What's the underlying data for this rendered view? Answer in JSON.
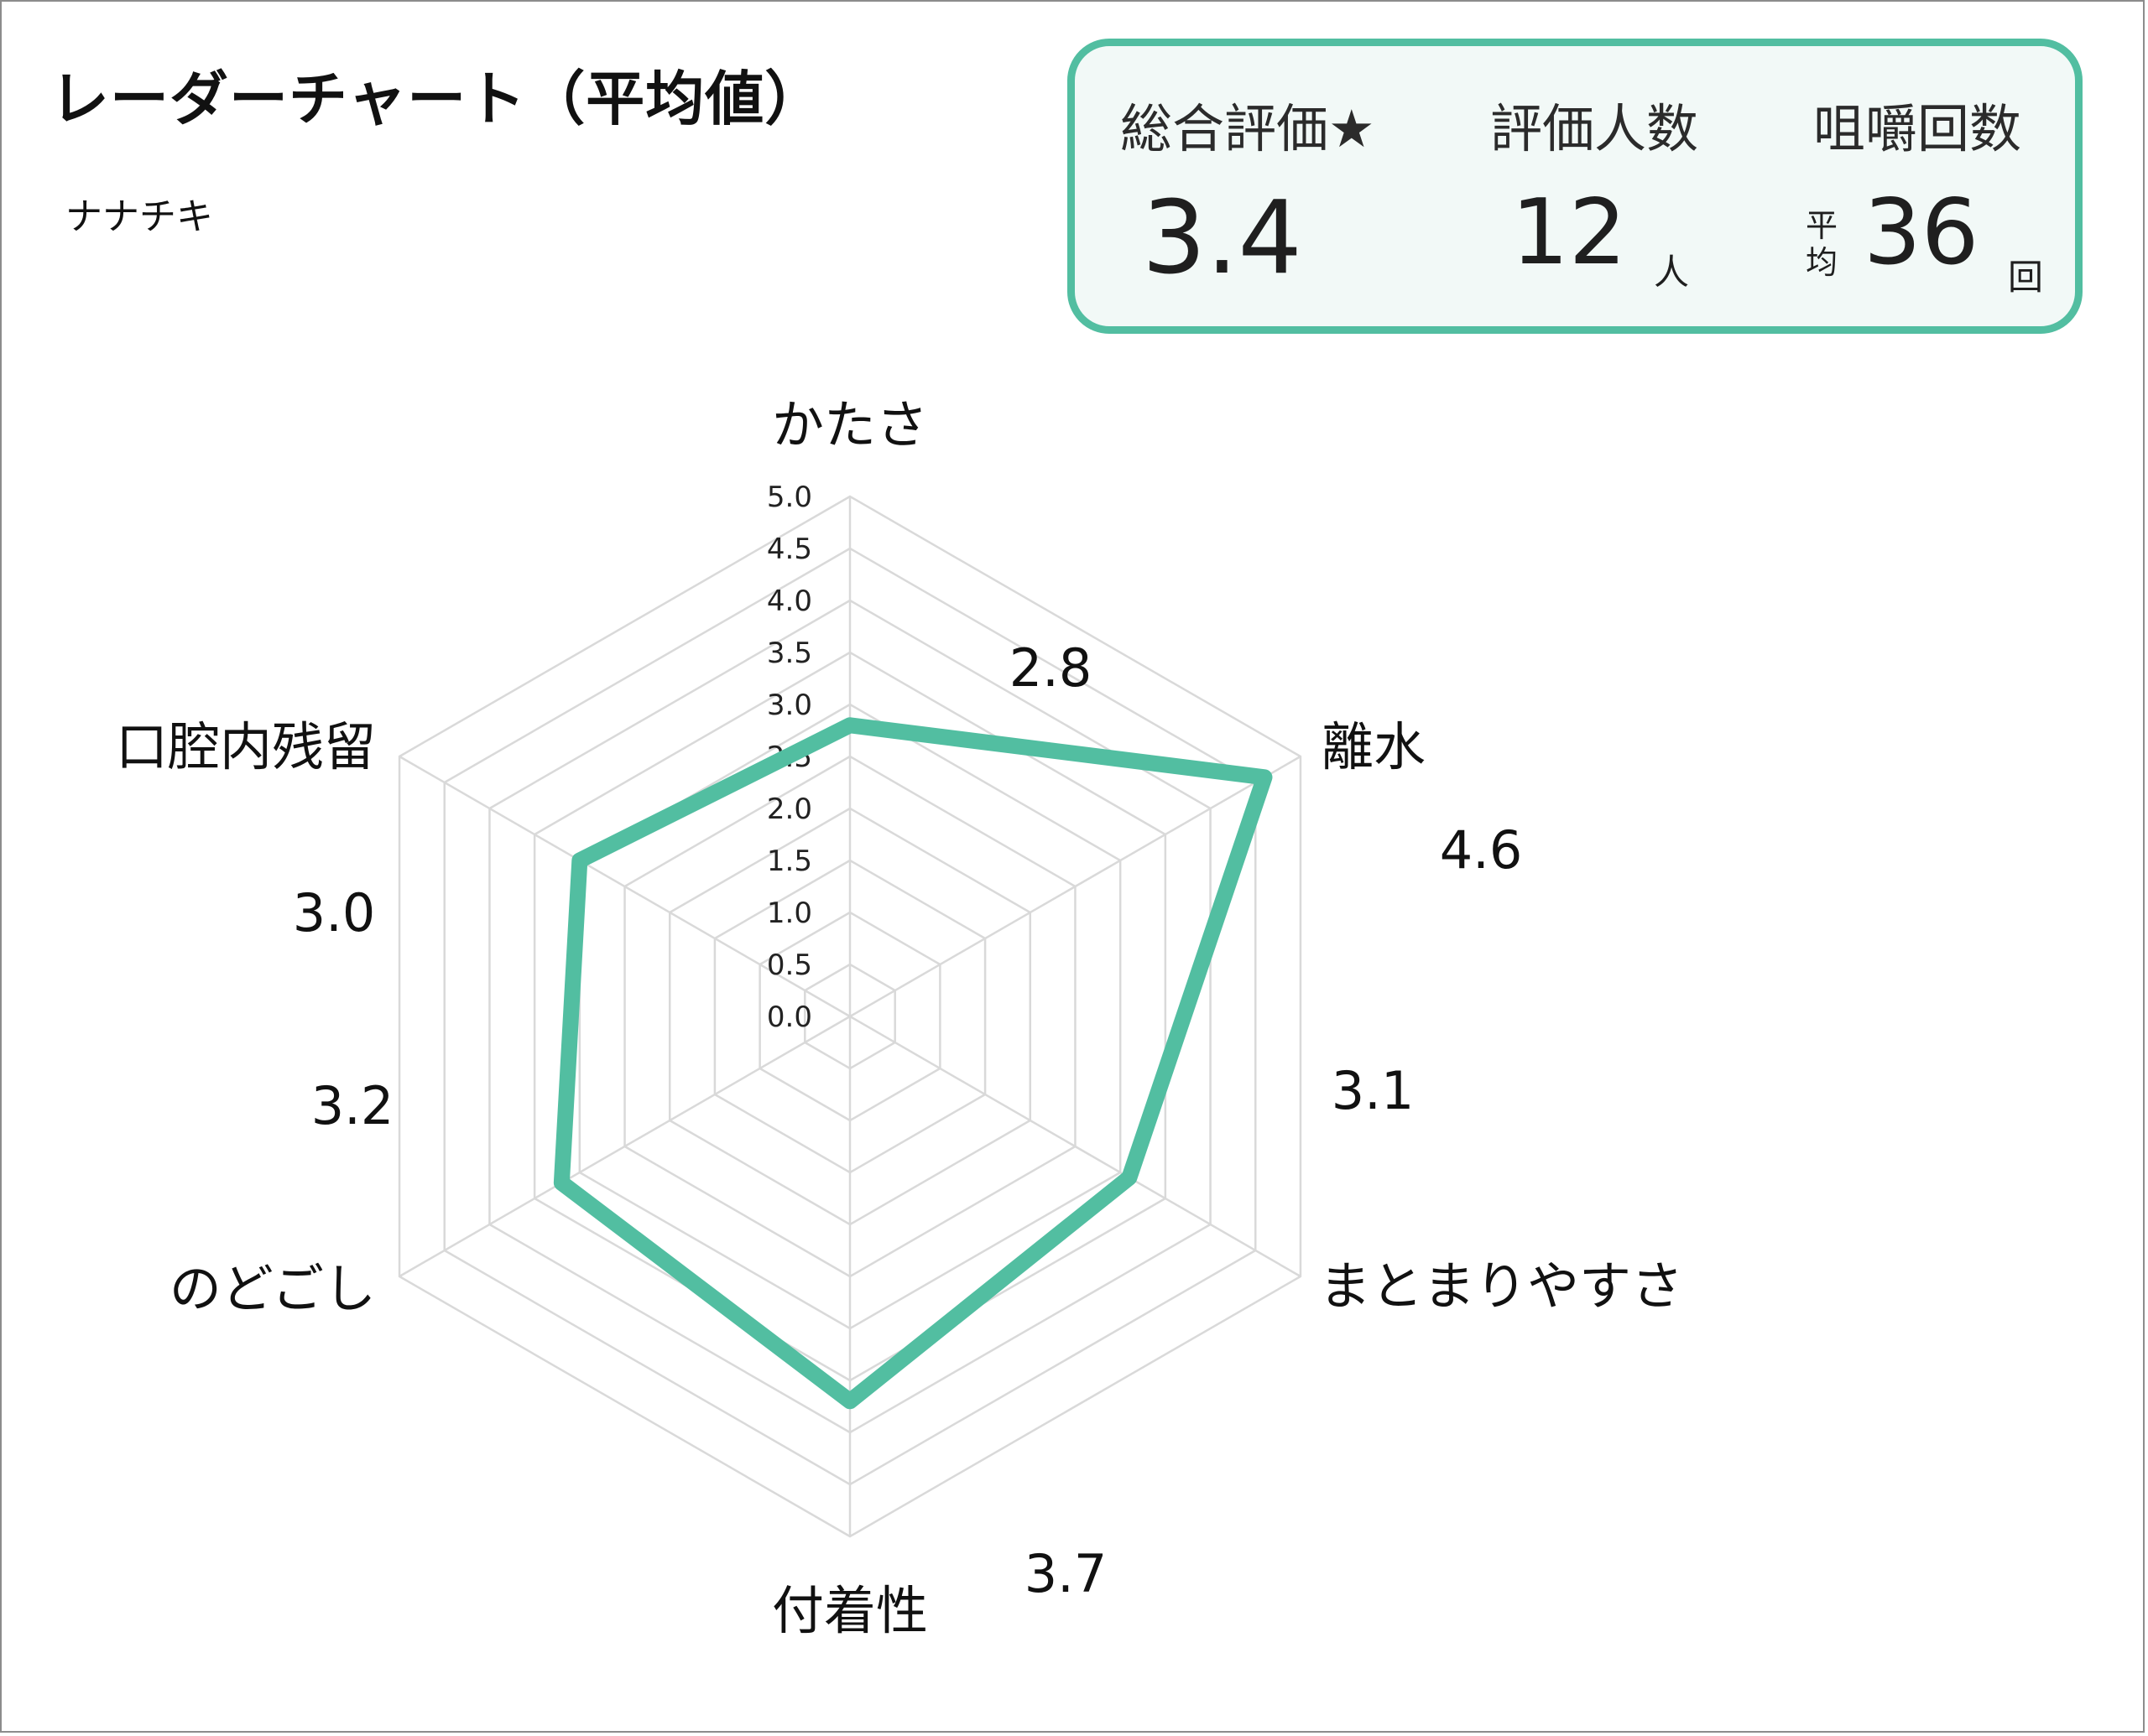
{
  "title": "レーダーチャート（平均値）",
  "subtitle": "ナナチキ",
  "summary": {
    "overall_label": "総合評価★",
    "overall_value": "3.4",
    "raters_label": "評価人数",
    "raters_value": "12",
    "raters_unit": "人",
    "chews_label": "咀嚼回数",
    "chews_prefix": "平均",
    "chews_value": "36",
    "chews_unit": "回"
  },
  "colors": {
    "accent": "#52bea1",
    "grid": "#d9d9d9",
    "panel_bg": "#f2f9f7"
  },
  "chart_data": {
    "type": "radar",
    "title": "レーダーチャート（平均値）",
    "axes": [
      "かたさ",
      "離水",
      "まとまりやすさ",
      "付着性",
      "のどごし",
      "口腔内残留"
    ],
    "values": [
      2.8,
      4.6,
      3.1,
      3.7,
      3.2,
      3.0
    ],
    "value_labels": [
      "2.8",
      "4.6",
      "3.1",
      "3.7",
      "3.2",
      "3.0"
    ],
    "range": [
      0,
      5
    ],
    "ticks": [
      "0.0",
      "0.5",
      "1.0",
      "1.5",
      "2.0",
      "2.5",
      "3.0",
      "3.5",
      "4.0",
      "4.5",
      "5.0"
    ],
    "grid": true,
    "legend": false
  }
}
